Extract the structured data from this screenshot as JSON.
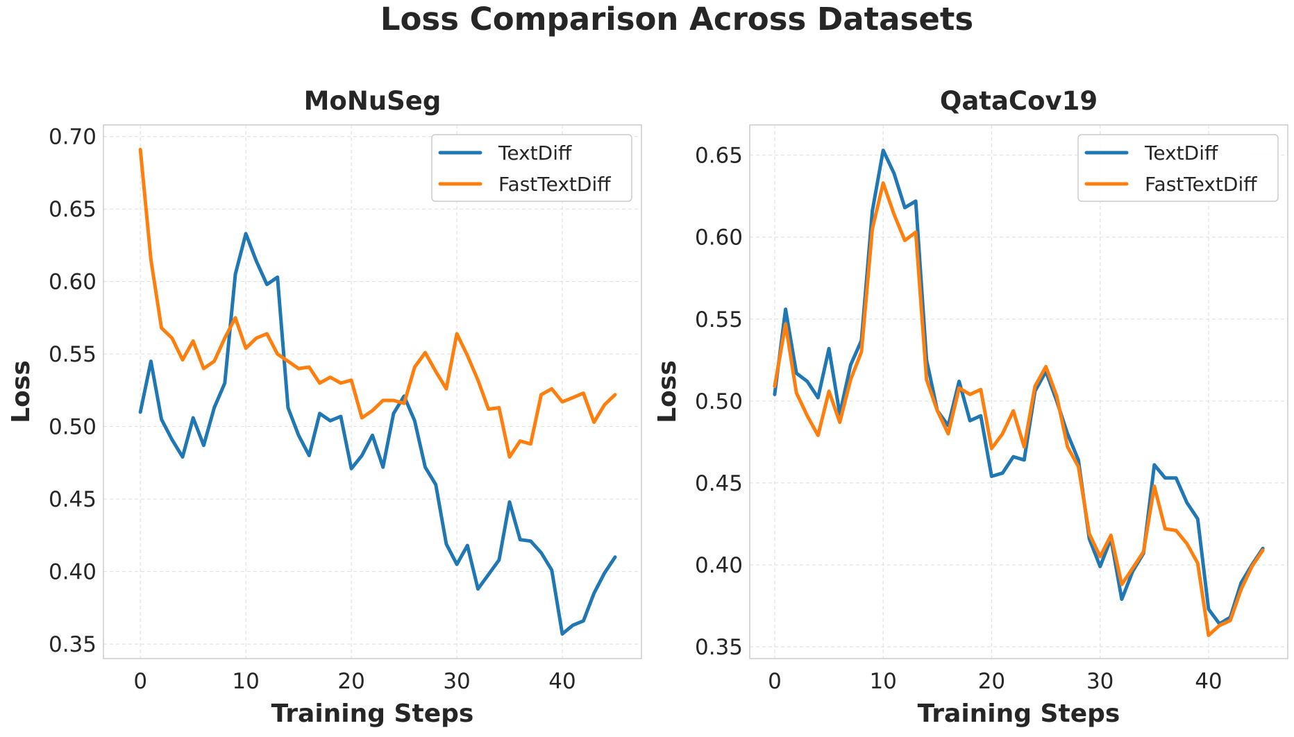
{
  "title": "Loss Comparison Across Datasets",
  "colors": {
    "TextDiff": "#1f77b4",
    "FastTextDiff": "#ff7f0e"
  },
  "chart_data": [
    {
      "type": "line",
      "title": "MoNuSeg",
      "xlabel": "Training Steps",
      "ylabel": "Loss",
      "xlim": [
        -3.5,
        47.5
      ],
      "ylim": [
        0.34,
        0.708
      ],
      "xticks": [
        0,
        10,
        20,
        30,
        40
      ],
      "yticks": [
        0.35,
        0.4,
        0.45,
        0.5,
        0.55,
        0.6,
        0.65,
        0.7
      ],
      "ytick_labels": [
        "0.35",
        "0.40",
        "0.45",
        "0.50",
        "0.55",
        "0.60",
        "0.65",
        "0.70"
      ],
      "grid": true,
      "legend": "top-right",
      "series": [
        {
          "name": "TextDiff",
          "x": [
            0,
            1,
            2,
            3,
            4,
            5,
            6,
            7,
            8,
            9,
            10,
            11,
            12,
            13,
            14,
            15,
            16,
            17,
            18,
            19,
            20,
            21,
            22,
            23,
            24,
            25,
            26,
            27,
            28,
            29,
            30,
            31,
            32,
            33,
            34,
            35,
            36,
            37,
            38,
            39,
            40,
            41,
            42,
            43,
            44,
            45
          ],
          "values": [
            0.51,
            0.545,
            0.505,
            0.491,
            0.479,
            0.506,
            0.487,
            0.513,
            0.53,
            0.605,
            0.633,
            0.614,
            0.598,
            0.603,
            0.513,
            0.494,
            0.48,
            0.509,
            0.504,
            0.507,
            0.471,
            0.48,
            0.494,
            0.472,
            0.509,
            0.521,
            0.504,
            0.472,
            0.46,
            0.419,
            0.405,
            0.418,
            0.388,
            0.398,
            0.408,
            0.448,
            0.422,
            0.421,
            0.413,
            0.401,
            0.357,
            0.363,
            0.366,
            0.385,
            0.399,
            0.41
          ]
        },
        {
          "name": "FastTextDiff",
          "x": [
            0,
            1,
            2,
            3,
            4,
            5,
            6,
            7,
            8,
            9,
            10,
            11,
            12,
            13,
            14,
            15,
            16,
            17,
            18,
            19,
            20,
            21,
            22,
            23,
            24,
            25,
            26,
            27,
            28,
            29,
            30,
            31,
            32,
            33,
            34,
            35,
            36,
            37,
            38,
            39,
            40,
            41,
            42,
            43,
            44,
            45
          ],
          "values": [
            0.691,
            0.615,
            0.568,
            0.561,
            0.546,
            0.559,
            0.54,
            0.545,
            0.561,
            0.575,
            0.554,
            0.561,
            0.564,
            0.55,
            0.545,
            0.54,
            0.541,
            0.53,
            0.534,
            0.53,
            0.532,
            0.506,
            0.511,
            0.518,
            0.518,
            0.516,
            0.541,
            0.551,
            0.538,
            0.526,
            0.564,
            0.549,
            0.532,
            0.512,
            0.513,
            0.479,
            0.49,
            0.488,
            0.522,
            0.526,
            0.517,
            0.52,
            0.523,
            0.503,
            0.515,
            0.522
          ]
        }
      ]
    },
    {
      "type": "line",
      "title": "QataCov19",
      "xlabel": "Training Steps",
      "ylabel": "Loss",
      "xlim": [
        -2.3,
        47.3
      ],
      "ylim": [
        0.3428,
        0.6685
      ],
      "xticks": [
        0,
        10,
        20,
        30,
        40
      ],
      "yticks": [
        0.35,
        0.4,
        0.45,
        0.5,
        0.55,
        0.6,
        0.65
      ],
      "ytick_labels": [
        "0.35",
        "0.40",
        "0.45",
        "0.50",
        "0.55",
        "0.60",
        "0.65"
      ],
      "grid": true,
      "legend": "top-right",
      "series": [
        {
          "name": "TextDiff",
          "x": [
            0,
            1,
            2,
            3,
            4,
            5,
            6,
            7,
            8,
            9,
            10,
            11,
            12,
            13,
            14,
            15,
            16,
            17,
            18,
            19,
            20,
            21,
            22,
            23,
            24,
            25,
            26,
            27,
            28,
            29,
            30,
            31,
            32,
            33,
            34,
            35,
            36,
            37,
            38,
            39,
            40,
            41,
            42,
            43,
            44,
            45
          ],
          "values": [
            0.504,
            0.556,
            0.517,
            0.512,
            0.502,
            0.532,
            0.492,
            0.522,
            0.537,
            0.616,
            0.653,
            0.639,
            0.618,
            0.622,
            0.525,
            0.494,
            0.485,
            0.512,
            0.488,
            0.491,
            0.454,
            0.456,
            0.466,
            0.464,
            0.506,
            0.518,
            0.5,
            0.48,
            0.464,
            0.416,
            0.399,
            0.416,
            0.379,
            0.396,
            0.407,
            0.461,
            0.453,
            0.453,
            0.438,
            0.428,
            0.373,
            0.364,
            0.368,
            0.389,
            0.4,
            0.41
          ]
        },
        {
          "name": "FastTextDiff",
          "x": [
            0,
            1,
            2,
            3,
            4,
            5,
            6,
            7,
            8,
            9,
            10,
            11,
            12,
            13,
            14,
            15,
            16,
            17,
            18,
            19,
            20,
            21,
            22,
            23,
            24,
            25,
            26,
            27,
            28,
            29,
            30,
            31,
            32,
            33,
            34,
            35,
            36,
            37,
            38,
            39,
            40,
            41,
            42,
            43,
            44,
            45
          ],
          "values": [
            0.509,
            0.547,
            0.505,
            0.491,
            0.479,
            0.506,
            0.487,
            0.513,
            0.53,
            0.605,
            0.633,
            0.614,
            0.598,
            0.603,
            0.513,
            0.494,
            0.48,
            0.508,
            0.504,
            0.507,
            0.471,
            0.48,
            0.494,
            0.472,
            0.509,
            0.521,
            0.503,
            0.472,
            0.46,
            0.419,
            0.405,
            0.418,
            0.388,
            0.398,
            0.408,
            0.448,
            0.422,
            0.421,
            0.413,
            0.401,
            0.357,
            0.363,
            0.366,
            0.385,
            0.399,
            0.409
          ]
        }
      ]
    }
  ]
}
